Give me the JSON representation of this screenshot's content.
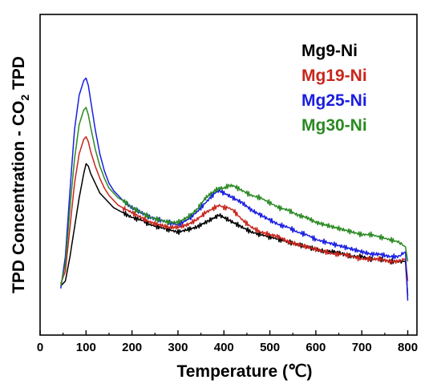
{
  "chart_data": {
    "type": "line",
    "title": "",
    "xlabel": "Temperature (℃)",
    "ylabel": "TPD Concentration - CO",
    "ylabel_subscript": "2",
    "ylabel_suffix": " TPD",
    "xlim": [
      0,
      820
    ],
    "ylim": [
      0,
      1
    ],
    "x_ticks": [
      0,
      100,
      200,
      300,
      400,
      500,
      600,
      700,
      800
    ],
    "y_ticks_labeled": false,
    "grid": false,
    "legend_position": "top-right",
    "series": [
      {
        "name": "Mg9-Ni",
        "color": "#000000",
        "x": [
          45,
          55,
          65,
          75,
          85,
          95,
          100,
          105,
          110,
          120,
          130,
          140,
          150,
          160,
          170,
          180,
          200,
          220,
          240,
          260,
          280,
          300,
          320,
          340,
          360,
          380,
          390,
          400,
          410,
          420,
          440,
          460,
          480,
          500,
          520,
          540,
          560,
          580,
          600,
          620,
          640,
          660,
          680,
          700,
          720,
          740,
          760,
          780,
          795,
          800
        ],
        "values": [
          0.06,
          0.08,
          0.18,
          0.3,
          0.42,
          0.52,
          0.56,
          0.55,
          0.52,
          0.48,
          0.44,
          0.42,
          0.4,
          0.38,
          0.37,
          0.36,
          0.34,
          0.33,
          0.31,
          0.3,
          0.29,
          0.28,
          0.29,
          0.3,
          0.32,
          0.34,
          0.35,
          0.34,
          0.33,
          0.32,
          0.3,
          0.28,
          0.27,
          0.26,
          0.25,
          0.24,
          0.23,
          0.22,
          0.21,
          0.2,
          0.2,
          0.19,
          0.18,
          0.18,
          0.17,
          0.17,
          0.16,
          0.16,
          0.16,
          0.02
        ]
      },
      {
        "name": "Mg19-Ni",
        "color": "#c8261c",
        "x": [
          45,
          55,
          65,
          75,
          85,
          95,
          100,
          105,
          110,
          120,
          130,
          140,
          150,
          160,
          170,
          180,
          200,
          220,
          240,
          260,
          280,
          300,
          320,
          340,
          360,
          380,
          390,
          400,
          410,
          420,
          440,
          460,
          480,
          500,
          520,
          540,
          560,
          580,
          600,
          620,
          640,
          660,
          680,
          700,
          720,
          740,
          760,
          780,
          795,
          800
        ],
        "values": [
          0.07,
          0.12,
          0.3,
          0.48,
          0.6,
          0.66,
          0.67,
          0.65,
          0.61,
          0.55,
          0.5,
          0.46,
          0.43,
          0.41,
          0.39,
          0.38,
          0.36,
          0.34,
          0.32,
          0.31,
          0.3,
          0.3,
          0.31,
          0.33,
          0.36,
          0.38,
          0.39,
          0.38,
          0.38,
          0.37,
          0.33,
          0.3,
          0.28,
          0.27,
          0.26,
          0.24,
          0.23,
          0.22,
          0.21,
          0.2,
          0.19,
          0.19,
          0.18,
          0.17,
          0.17,
          0.17,
          0.16,
          0.16,
          0.17,
          0.08
        ]
      },
      {
        "name": "Mg25-Ni",
        "color": "#1a1ee0",
        "x": [
          45,
          55,
          65,
          75,
          85,
          95,
          100,
          105,
          110,
          120,
          130,
          140,
          150,
          160,
          170,
          180,
          200,
          220,
          240,
          260,
          280,
          300,
          320,
          340,
          360,
          380,
          390,
          400,
          410,
          420,
          440,
          460,
          480,
          500,
          520,
          540,
          560,
          580,
          600,
          620,
          640,
          660,
          680,
          700,
          720,
          740,
          760,
          780,
          795,
          800
        ],
        "values": [
          0.05,
          0.18,
          0.45,
          0.7,
          0.84,
          0.9,
          0.91,
          0.88,
          0.82,
          0.7,
          0.6,
          0.53,
          0.48,
          0.45,
          0.43,
          0.41,
          0.38,
          0.36,
          0.34,
          0.33,
          0.32,
          0.31,
          0.33,
          0.36,
          0.4,
          0.44,
          0.45,
          0.44,
          0.43,
          0.42,
          0.4,
          0.37,
          0.35,
          0.33,
          0.31,
          0.3,
          0.28,
          0.27,
          0.25,
          0.24,
          0.23,
          0.22,
          0.21,
          0.2,
          0.19,
          0.19,
          0.18,
          0.18,
          0.2,
          0.0
        ]
      },
      {
        "name": "Mg30-Ni",
        "color": "#2a8a22",
        "x": [
          45,
          55,
          65,
          75,
          85,
          95,
          100,
          105,
          110,
          120,
          130,
          140,
          150,
          160,
          170,
          180,
          200,
          220,
          240,
          260,
          280,
          300,
          320,
          340,
          360,
          380,
          390,
          400,
          410,
          420,
          440,
          460,
          480,
          500,
          520,
          540,
          560,
          580,
          600,
          620,
          640,
          660,
          680,
          700,
          720,
          740,
          760,
          780,
          795,
          800
        ],
        "values": [
          0.06,
          0.15,
          0.38,
          0.58,
          0.72,
          0.78,
          0.79,
          0.76,
          0.71,
          0.62,
          0.55,
          0.5,
          0.46,
          0.44,
          0.42,
          0.41,
          0.38,
          0.36,
          0.34,
          0.33,
          0.32,
          0.32,
          0.34,
          0.37,
          0.42,
          0.45,
          0.46,
          0.46,
          0.47,
          0.47,
          0.45,
          0.43,
          0.42,
          0.4,
          0.38,
          0.37,
          0.35,
          0.34,
          0.32,
          0.31,
          0.3,
          0.29,
          0.28,
          0.27,
          0.27,
          0.26,
          0.25,
          0.24,
          0.22,
          0.16
        ]
      }
    ]
  }
}
